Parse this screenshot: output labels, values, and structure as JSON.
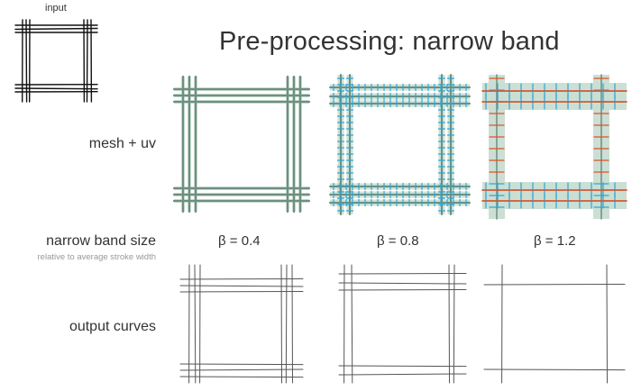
{
  "input_label": "input",
  "title": "Pre-processing: narrow band",
  "rows": {
    "mesh_uv": "mesh + uv",
    "narrow_band_size": "narrow band size",
    "narrow_band_sub": "relative to average stroke width",
    "output_curves": "output curves"
  },
  "columns": [
    {
      "beta_label": "β = 0.4"
    },
    {
      "beta_label": "β = 0.8"
    },
    {
      "beta_label": "β = 1.2"
    }
  ],
  "colors": {
    "stroke": "#111111",
    "mesh": "#6e8f80",
    "band_fill": "#c9ddd2",
    "uv_blue": "#2aa7d8",
    "uv_red": "#e0502a",
    "output_line": "#555555"
  }
}
